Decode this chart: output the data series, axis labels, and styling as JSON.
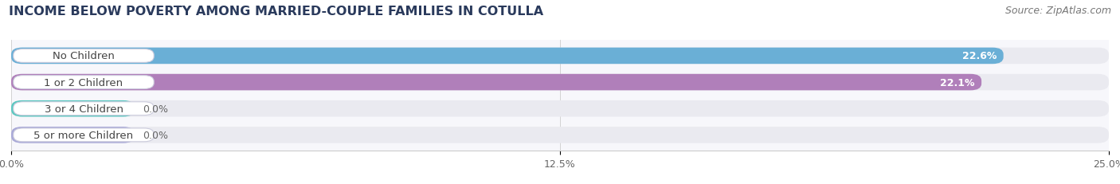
{
  "title": "INCOME BELOW POVERTY AMONG MARRIED-COUPLE FAMILIES IN COTULLA",
  "source": "Source: ZipAtlas.com",
  "categories": [
    "No Children",
    "1 or 2 Children",
    "3 or 4 Children",
    "5 or more Children"
  ],
  "values": [
    22.6,
    22.1,
    0.0,
    0.0
  ],
  "bar_colors": [
    "#6aafd6",
    "#b07fba",
    "#5bc8c0",
    "#a8a8d8"
  ],
  "bar_bg_color": "#eaeaf0",
  "xlim": [
    0,
    25.0
  ],
  "xticks": [
    0.0,
    12.5,
    25.0
  ],
  "xtick_labels": [
    "0.0%",
    "12.5%",
    "25.0%"
  ],
  "value_labels": [
    "22.6%",
    "22.1%",
    "0.0%",
    "0.0%"
  ],
  "background_color": "#ffffff",
  "chart_bg_color": "#f7f7fb",
  "title_fontsize": 11.5,
  "source_fontsize": 9,
  "label_fontsize": 9.5,
  "value_fontsize": 9,
  "small_bar_width": 2.8
}
